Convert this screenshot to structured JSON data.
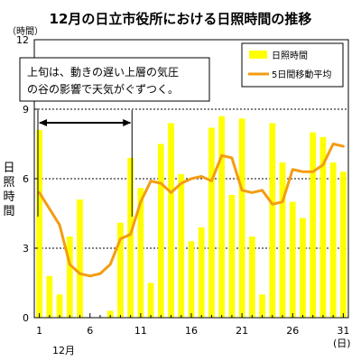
{
  "chart_data": {
    "type": "bar",
    "title": "12月の日立市役所における日照時間の推移",
    "yunit": "（時間）",
    "ylabel": "日照時間",
    "xunit": "(日)",
    "xmonth": "12月",
    "ylim": [
      0,
      12
    ],
    "yticks": [
      0,
      3,
      6,
      9,
      12
    ],
    "xtick_days": [
      1,
      6,
      11,
      16,
      21,
      26,
      31
    ],
    "dashed_gridlines": [
      3,
      6,
      9
    ],
    "annotation": [
      "上旬は、動きの遅い上層の気圧",
      "の谷の影響で天気がぐずつく。"
    ],
    "annotation_bracket_days": [
      1,
      10
    ],
    "series": [
      {
        "name": "日照時間",
        "type": "bar",
        "color": "#ffff00",
        "values": [
          8.1,
          1.8,
          1.0,
          3.5,
          5.1,
          0.0,
          0.0,
          0.3,
          4.1,
          6.9,
          5.6,
          1.5,
          7.5,
          8.4,
          6.2,
          3.3,
          3.9,
          8.2,
          8.7,
          5.3,
          8.6,
          3.5,
          1.0,
          8.4,
          6.7,
          5.0,
          4.3,
          8.0,
          7.8,
          6.7,
          6.3
        ]
      },
      {
        "name": "5日間移動平均",
        "type": "line",
        "color": "#f39c12",
        "values": [
          5.4,
          4.7,
          4.0,
          2.3,
          1.9,
          1.8,
          1.9,
          2.3,
          3.4,
          3.6,
          5.0,
          5.9,
          5.8,
          5.4,
          5.8,
          6.0,
          6.1,
          5.9,
          7.0,
          6.9,
          5.5,
          5.4,
          5.5,
          4.9,
          5.0,
          6.4,
          6.3,
          6.3,
          6.6,
          7.5,
          7.4
        ]
      }
    ]
  }
}
